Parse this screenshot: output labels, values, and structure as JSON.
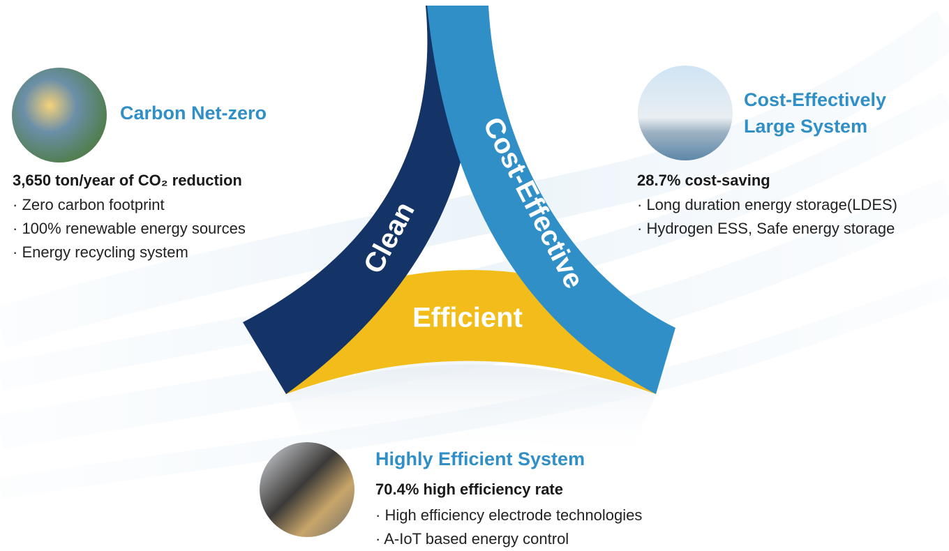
{
  "diagram": {
    "segments": {
      "clean": "Clean",
      "cost_effective": "Cost-Effective",
      "efficient": "Efficient"
    },
    "features": [
      {
        "title": [
          "Carbon Net-zero"
        ],
        "highlight": "3,650 ton/year of CO₂ reduction",
        "bullets": [
          "· Zero carbon footprint",
          "· 100% renewable energy sources",
          "· Energy recycling system"
        ]
      },
      {
        "title": [
          "Cost-Effectively",
          "Large System"
        ],
        "highlight": "28.7% cost-saving",
        "bullets": [
          "· Long duration energy storage(LDES)",
          "· Hydrogen ESS, Safe energy storage"
        ]
      },
      {
        "title": [
          "Highly Efficient System"
        ],
        "highlight": "70.4% high efficiency rate",
        "bullets": [
          "· High efficiency electrode technologies",
          "· A-IoT based energy control"
        ]
      }
    ]
  }
}
